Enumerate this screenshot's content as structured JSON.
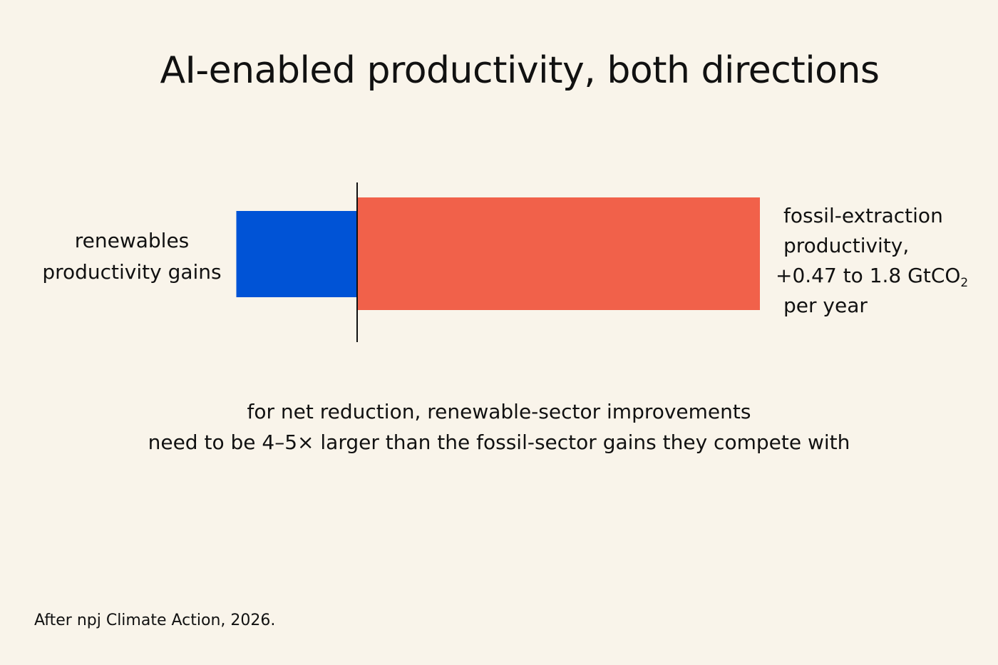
{
  "chart_data": {
    "type": "bar",
    "title": "AI-enabled productivity, both directions",
    "orientation": "horizontal-diverging",
    "series": [
      {
        "name": "renewables productivity gains",
        "direction": "negative",
        "relative_magnitude": 0.3,
        "color": "#0053d6"
      },
      {
        "name": "fossil-extraction productivity, +0.47 to 1.8 GtCO2 per year",
        "direction": "positive",
        "relative_magnitude": 1.0,
        "range": [
          0.47,
          1.8
        ],
        "unit": "GtCO2 per year",
        "color": "#f1614a"
      }
    ],
    "labels": {
      "left": [
        "renewables",
        "productivity gains"
      ],
      "right": {
        "line1": "fossil-extraction",
        "line2": "productivity,",
        "line3_prefix": "+0.47 to 1.8 GtCO",
        "line3_sub": "2",
        "line4": "per year"
      }
    },
    "annotation": [
      "for net reduction, renewable-sector improvements",
      "need to be 4–5× larger than the fossil-sector gains they compete with"
    ],
    "source": "After npj Climate Action, 2026.",
    "axis_color": "#111111",
    "background": "#f9f4ea"
  }
}
